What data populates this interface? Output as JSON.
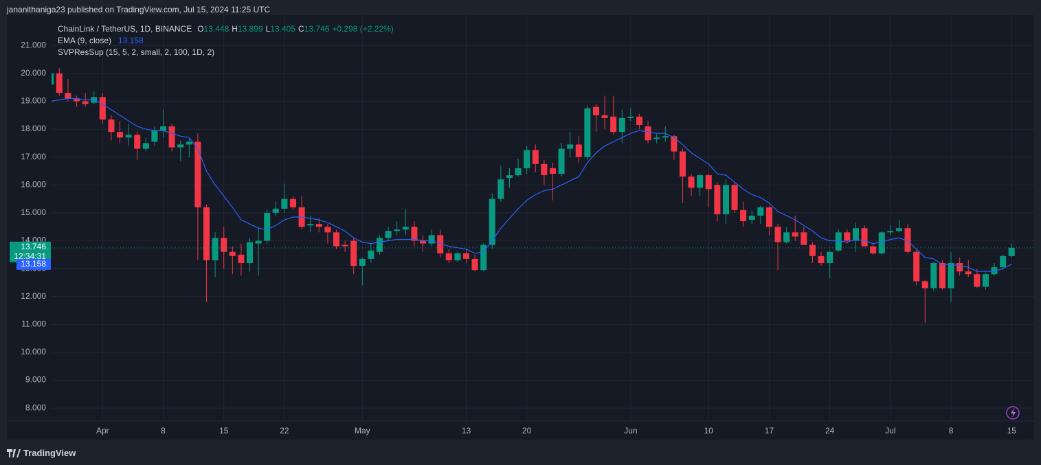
{
  "header": "jananithaniga23 published on TradingView.com, Jul 15, 2024 11:25 UTC",
  "footer": "TradingView",
  "chart_data": {
    "type": "candlestick",
    "title": "ChainLink / TetherUS, 1D, BINANCE",
    "ohlc_labels": [
      "O",
      "H",
      "L",
      "C"
    ],
    "change": "+0.298 (+2.22%)",
    "indicator": "SVPResSup (15, 5, 2, small, 2, 100, 1D, 2)",
    "countdown": "12:34:31",
    "up_color": "#089981",
    "down_color": "#f23645",
    "open": [
      19.6,
      20.0,
      19.3,
      19.1,
      19.0,
      18.95,
      19.15,
      18.35,
      17.9,
      17.7,
      17.8,
      17.3,
      17.55,
      17.95,
      18.1,
      17.35,
      17.45,
      17.55,
      15.2,
      13.3,
      14.1,
      13.6,
      13.5,
      13.2,
      13.9,
      14.0,
      15.0,
      15.15,
      15.5,
      15.2,
      14.55,
      14.6,
      14.5,
      14.3,
      13.85,
      14.0,
      13.1,
      13.35,
      13.6,
      14.1,
      14.35,
      14.4,
      14.5,
      14.0,
      13.9,
      14.2,
      13.55,
      13.3,
      13.55,
      13.35,
      12.95,
      13.85,
      15.5,
      16.25,
      16.35,
      16.6,
      17.25,
      16.75,
      16.6,
      16.4,
      17.3,
      17.45,
      17.0,
      18.8,
      18.5,
      18.45,
      17.9,
      18.4,
      18.45,
      18.1,
      17.65,
      17.7,
      17.75,
      17.2,
      16.3,
      15.9,
      16.35,
      16.0,
      14.95,
      16.0,
      15.1,
      14.75,
      14.9,
      15.2,
      14.5,
      13.95,
      14.3,
      14.3,
      13.85,
      13.45,
      13.2,
      13.65,
      14.3,
      14.0,
      14.45,
      13.8,
      13.55,
      14.3,
      14.35,
      14.45,
      13.6,
      12.55,
      12.3,
      13.2,
      12.3,
      13.2,
      12.9,
      12.8,
      12.35,
      12.8,
      13.05,
      13.448
    ],
    "high": [
      20.1,
      20.2,
      19.8,
      19.2,
      19.3,
      19.35,
      19.3,
      18.5,
      18.3,
      18.2,
      17.9,
      17.7,
      18.1,
      18.7,
      18.2,
      17.6,
      17.7,
      17.85,
      15.3,
      14.3,
      14.5,
      13.8,
      13.9,
      14.1,
      14.5,
      15.1,
      15.4,
      16.05,
      15.6,
      15.6,
      14.9,
      14.8,
      14.6,
      14.4,
      14.0,
      14.1,
      13.4,
      13.9,
      14.2,
      14.5,
      14.7,
      15.15,
      14.7,
      14.2,
      14.4,
      14.4,
      13.7,
      13.6,
      13.7,
      13.5,
      13.9,
      15.7,
      16.7,
      16.6,
      16.95,
      17.4,
      17.45,
      16.9,
      16.8,
      17.5,
      17.9,
      17.75,
      18.85,
      18.9,
      19.2,
      19.2,
      18.7,
      18.75,
      18.55,
      18.3,
      17.85,
      18.1,
      17.8,
      17.3,
      16.4,
      16.4,
      16.4,
      16.1,
      16.2,
      16.1,
      15.4,
      15.1,
      15.25,
      15.25,
      14.6,
      14.5,
      14.9,
      14.5,
      13.95,
      13.6,
      13.65,
      14.4,
      14.4,
      14.65,
      14.55,
      13.9,
      14.35,
      14.55,
      14.75,
      14.6,
      13.65,
      12.6,
      13.25,
      13.3,
      13.6,
      13.4,
      13.3,
      13.0,
      12.85,
      13.2,
      13.5,
      13.899
    ],
    "low": [
      19.6,
      19.2,
      19.0,
      18.8,
      18.8,
      18.9,
      18.2,
      17.6,
      17.5,
      17.4,
      16.9,
      17.2,
      17.4,
      17.7,
      17.2,
      16.85,
      17.0,
      13.3,
      11.8,
      12.7,
      13.0,
      12.8,
      12.75,
      12.9,
      12.75,
      13.9,
      14.9,
      15.0,
      15.1,
      14.4,
      14.3,
      14.3,
      13.9,
      13.7,
      13.6,
      12.8,
      12.4,
      13.2,
      13.5,
      14.0,
      14.2,
      14.2,
      13.8,
      13.6,
      13.8,
      13.4,
      13.2,
      13.25,
      13.2,
      12.9,
      12.9,
      13.7,
      15.4,
      15.9,
      16.3,
      16.4,
      16.45,
      16.0,
      15.45,
      16.3,
      17.0,
      16.8,
      16.9,
      17.9,
      18.0,
      17.8,
      17.5,
      18.3,
      18.0,
      17.5,
      17.5,
      17.55,
      16.9,
      15.35,
      15.6,
      15.6,
      15.2,
      14.7,
      14.6,
      15.0,
      14.5,
      14.6,
      14.6,
      14.2,
      12.95,
      13.9,
      14.0,
      13.85,
      13.2,
      13.1,
      12.65,
      13.6,
      13.9,
      13.6,
      13.8,
      13.5,
      13.5,
      14.2,
      14.3,
      13.55,
      12.4,
      11.05,
      12.2,
      12.25,
      11.8,
      12.75,
      12.7,
      12.3,
      12.25,
      12.75,
      12.95,
      13.405
    ],
    "close": [
      20.0,
      19.3,
      19.1,
      19.0,
      18.9,
      19.15,
      18.35,
      17.9,
      17.7,
      17.8,
      17.3,
      17.5,
      17.95,
      18.1,
      17.35,
      17.45,
      17.55,
      15.2,
      13.3,
      14.1,
      13.6,
      13.45,
      13.2,
      13.95,
      14.0,
      15.0,
      15.15,
      15.5,
      15.2,
      14.5,
      14.6,
      14.5,
      14.3,
      13.8,
      13.8,
      13.1,
      13.35,
      13.65,
      14.1,
      14.35,
      14.4,
      14.5,
      14.0,
      13.9,
      14.2,
      13.55,
      13.3,
      13.55,
      13.35,
      12.95,
      13.85,
      15.5,
      16.2,
      16.35,
      16.6,
      17.25,
      16.75,
      16.35,
      16.4,
      17.3,
      17.45,
      17.0,
      18.75,
      18.5,
      18.4,
      17.9,
      18.4,
      18.45,
      18.15,
      17.6,
      17.7,
      17.75,
      17.2,
      16.3,
      15.9,
      16.35,
      15.85,
      14.95,
      16.0,
      15.1,
      14.7,
      14.9,
      15.2,
      14.5,
      13.95,
      14.3,
      14.15,
      13.85,
      13.45,
      13.2,
      13.6,
      14.3,
      14.0,
      14.45,
      13.8,
      13.55,
      14.3,
      14.35,
      14.45,
      13.6,
      12.55,
      12.3,
      13.2,
      12.3,
      13.2,
      12.9,
      12.8,
      12.35,
      12.8,
      13.05,
      13.45,
      13.746
    ],
    "ema": {
      "name": "EMA (9, close)",
      "color": "#2962ff",
      "values": [
        19.0,
        19.05,
        19.1,
        19.1,
        19.05,
        19.05,
        18.9,
        18.7,
        18.5,
        18.3,
        18.1,
        18.0,
        17.95,
        17.95,
        17.85,
        17.75,
        17.7,
        17.3,
        16.5,
        16.0,
        15.6,
        15.2,
        14.75,
        14.6,
        14.45,
        14.4,
        14.55,
        14.75,
        14.85,
        14.85,
        14.8,
        14.75,
        14.65,
        14.5,
        14.35,
        14.1,
        13.95,
        13.9,
        13.95,
        14.0,
        14.05,
        14.05,
        14.05,
        14.0,
        14.0,
        13.9,
        13.8,
        13.75,
        13.7,
        13.55,
        13.6,
        14.0,
        14.45,
        14.8,
        15.15,
        15.45,
        15.65,
        15.8,
        15.85,
        16.0,
        16.15,
        16.3,
        16.8,
        17.15,
        17.4,
        17.55,
        17.7,
        17.85,
        17.95,
        17.9,
        17.85,
        17.85,
        17.7,
        17.45,
        17.15,
        16.95,
        16.75,
        16.4,
        16.35,
        16.1,
        15.85,
        15.65,
        15.55,
        15.35,
        15.05,
        14.9,
        14.75,
        14.55,
        14.35,
        14.1,
        14.0,
        14.0,
        13.95,
        14.05,
        14.0,
        13.9,
        13.95,
        14.05,
        14.1,
        14.0,
        13.7,
        13.4,
        13.35,
        13.15,
        13.15,
        13.1,
        13.05,
        12.9,
        12.9,
        12.9,
        13.0,
        13.158
      ]
    },
    "xlim": [
      0.1,
      113.6
    ],
    "xticks": [
      {
        "value": 6,
        "label": "Apr"
      },
      {
        "value": 13,
        "label": "8"
      },
      {
        "value": 20,
        "label": "15"
      },
      {
        "value": 27,
        "label": "22"
      },
      {
        "value": 36,
        "label": "May"
      },
      {
        "value": 48,
        "label": "13"
      },
      {
        "value": 55,
        "label": "20"
      },
      {
        "value": 67,
        "label": "Jun"
      },
      {
        "value": 76,
        "label": "10"
      },
      {
        "value": 83,
        "label": "17"
      },
      {
        "value": 90,
        "label": "24"
      },
      {
        "value": 97,
        "label": "Jul"
      },
      {
        "value": 104,
        "label": "8"
      },
      {
        "value": 111,
        "label": "15"
      }
    ],
    "ylim": [
      7.56,
      22.09
    ],
    "yticks": [
      {
        "value": 8,
        "label": "8.000"
      },
      {
        "value": 9,
        "label": "9.000"
      },
      {
        "value": 10,
        "label": "10.000"
      },
      {
        "value": 11,
        "label": "11.000"
      },
      {
        "value": 12,
        "label": "12.000"
      },
      {
        "value": 13,
        "label": "13.000"
      },
      {
        "value": 14,
        "label": "14.000"
      },
      {
        "value": 15,
        "label": "15.000"
      },
      {
        "value": 16,
        "label": "16.000"
      },
      {
        "value": 17,
        "label": "17.000"
      },
      {
        "value": 18,
        "label": "18.000"
      },
      {
        "value": 19,
        "label": "19.000"
      },
      {
        "value": 20,
        "label": "20.000"
      },
      {
        "value": 21,
        "label": "21.000"
      }
    ],
    "grid": true
  }
}
